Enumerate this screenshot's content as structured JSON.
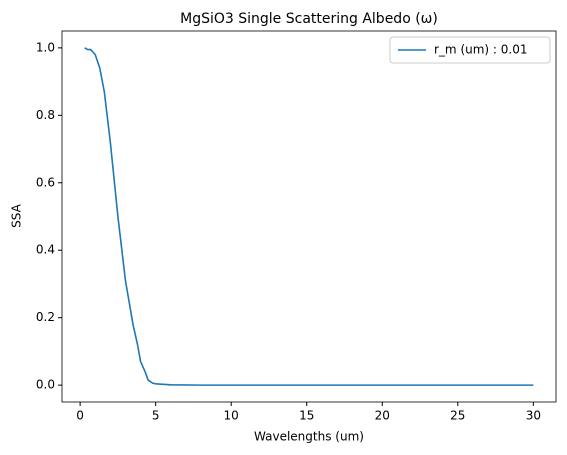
{
  "chart_data": {
    "type": "line",
    "title": "MgSiO3 Single Scattering Albedo (ω)",
    "x_label": "Wavelengths (um)",
    "y_label": "SSA",
    "x": [
      0.3,
      0.5,
      0.7,
      1.0,
      1.3,
      1.6,
      2.0,
      2.5,
      3.0,
      3.5,
      3.8,
      4.0,
      4.3,
      4.5,
      4.8,
      5.0,
      6.0,
      8.0,
      10.0,
      15.0,
      20.0,
      25.0,
      30.0
    ],
    "series": [
      {
        "name": "r_m (um) : 0.01",
        "color": "#1f77b4",
        "values": [
          1.0,
          0.995,
          0.995,
          0.98,
          0.94,
          0.87,
          0.72,
          0.5,
          0.31,
          0.18,
          0.12,
          0.07,
          0.04,
          0.015,
          0.006,
          0.004,
          0.001,
          0.0,
          0.0,
          0.0,
          0.0,
          0.0,
          0.0
        ]
      }
    ],
    "xlim": [
      -1.2,
      31.5
    ],
    "ylim": [
      -0.05,
      1.05
    ],
    "xticks": [
      0,
      5,
      10,
      15,
      20,
      25,
      30
    ],
    "yticks": [
      {
        "value": 0,
        "label": "0.0"
      },
      {
        "value": 0.2,
        "label": "0.2"
      },
      {
        "value": 0.4,
        "label": "0.4"
      },
      {
        "value": 0.6,
        "label": "0.6"
      },
      {
        "value": 0.8,
        "label": "0.8"
      },
      {
        "value": 1.0,
        "label": "1.0"
      }
    ],
    "grid": false,
    "legend": "upper right"
  }
}
